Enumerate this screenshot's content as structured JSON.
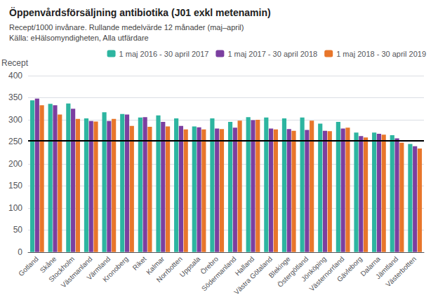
{
  "chart_data": {
    "type": "bar",
    "title": "Öppenvårdsförsäljning antibiotika (J01 exkl metenamin)",
    "subtitle": [
      "Recept/1000 invånare. Rullande medelvärde 12 månader (maj–april)",
      "Källa: eHälsomyndigheten, Alla utfärdare"
    ],
    "ylabel": "Recept",
    "categories": [
      "Gotland",
      "Skåne",
      "Stockholm",
      "Västmanland",
      "Värmland",
      "Kronoberg",
      "Riket",
      "Kalmar",
      "Norrbotten",
      "Uppsala",
      "Örebro",
      "Södermanland",
      "Halland",
      "Västra Götaland",
      "Blekinge",
      "Östergötland",
      "Jönköping",
      "Västernorrland",
      "Gävleborg",
      "Dalarna",
      "Jämtland",
      "Västerbotten"
    ],
    "series": [
      {
        "name": "1 maj 2016 - 30 april 2017",
        "color": "#2db5a0",
        "values": [
          344,
          336,
          337,
          303,
          317,
          313,
          305,
          310,
          303,
          285,
          303,
          295,
          306,
          305,
          303,
          305,
          291,
          295,
          271,
          271,
          265,
          245
        ]
      },
      {
        "name": "1 maj 2017 - 30 april 2018",
        "color": "#7b3fa0",
        "values": [
          348,
          333,
          325,
          297,
          297,
          312,
          306,
          295,
          286,
          283,
          280,
          282,
          299,
          280,
          279,
          277,
          275,
          280,
          263,
          268,
          258,
          240
        ]
      },
      {
        "name": "1 maj 2018 - 30 april 2019",
        "color": "#e8762b",
        "values": [
          333,
          312,
          302,
          296,
          302,
          286,
          284,
          285,
          278,
          278,
          279,
          298,
          300,
          278,
          275,
          298,
          274,
          282,
          260,
          266,
          248,
          235
        ]
      }
    ],
    "reference_line": 253,
    "ylim": [
      0,
      400
    ],
    "yticks": [
      0,
      50,
      100,
      150,
      200,
      250,
      300,
      350,
      400
    ],
    "grid": true,
    "legend": "upper right"
  }
}
